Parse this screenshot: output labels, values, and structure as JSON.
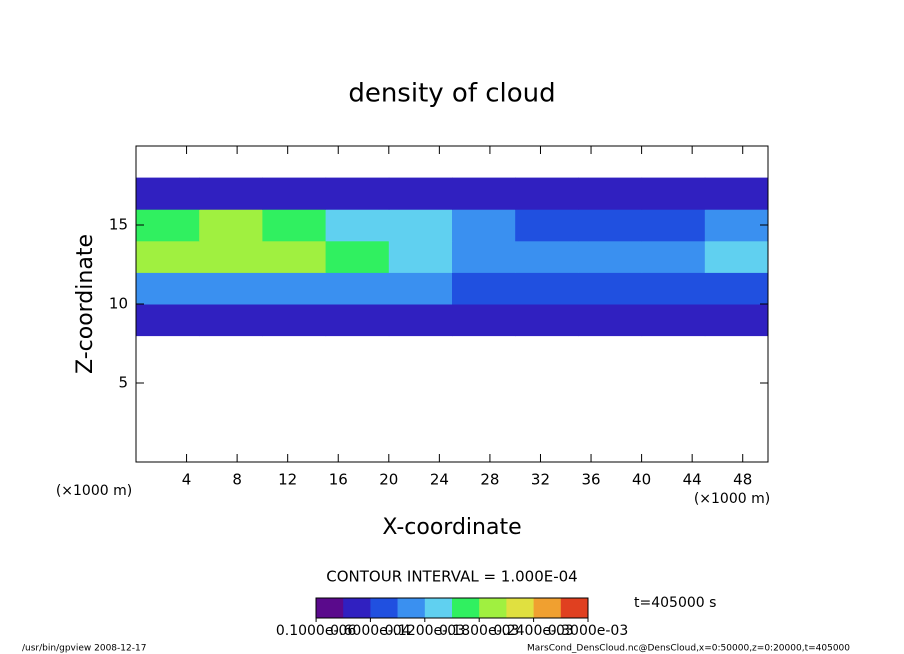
{
  "chart_data": {
    "type": "heatmap",
    "title": "density of cloud",
    "xlabel": "X-coordinate",
    "ylabel": "Z-coordinate",
    "x_unit": "(×1000 m)",
    "xlim": [
      0,
      50
    ],
    "ylim": [
      0,
      20
    ],
    "xticks": [
      4,
      8,
      12,
      16,
      20,
      24,
      28,
      32,
      36,
      40,
      44,
      48
    ],
    "yticks": [
      5,
      10,
      15
    ],
    "x": [
      2.5,
      7.5,
      12.5,
      17.5,
      22.5,
      27.5,
      32.5,
      37.5,
      42.5,
      47.5
    ],
    "y": [
      9,
      11,
      13,
      15,
      17
    ],
    "values": [
      [
        4e-05,
        4e-05,
        4e-05,
        4e-05,
        4e-05,
        4e-05,
        3e-05,
        3e-05,
        3e-05,
        3e-05
      ],
      [
        9e-05,
        0.0001,
        0.0001,
        0.0001,
        9e-05,
        8e-05,
        6e-05,
        6e-05,
        6e-05,
        7e-05
      ],
      [
        0.00019,
        0.0002,
        0.00018,
        0.00016,
        0.00014,
        0.00011,
        9e-05,
        9e-05,
        9e-05,
        0.00012
      ],
      [
        0.00016,
        0.00018,
        0.00016,
        0.00014,
        0.00012,
        0.0001,
        8e-05,
        8e-05,
        8e-05,
        9e-05
      ],
      [
        4e-05,
        5e-05,
        5e-05,
        5e-05,
        5e-05,
        5e-05,
        4e-05,
        4e-05,
        4e-05,
        4e-05
      ]
    ],
    "clim": [
      0,
      0.0003
    ],
    "colormap": [
      "#5a0a8c",
      "#3020c0",
      "#2050e0",
      "#3a90f0",
      "#60d0f0",
      "#30f060",
      "#a0f040",
      "#e0e040",
      "#f0a030",
      "#e04020"
    ],
    "cticks": [
      {
        "value": 1e-07,
        "label": "0.1000e-06"
      },
      {
        "value": 6e-05,
        "label": "0.6000e-04"
      },
      {
        "value": 0.00012,
        "label": "0.1200e-03"
      },
      {
        "value": 0.00018,
        "label": "0.1800e-03"
      },
      {
        "value": 0.00024,
        "label": "0.2400e-03"
      },
      {
        "value": 0.0003,
        "label": "0.3000e-03"
      }
    ],
    "contour_interval": "CONTOUR INTERVAL = 1.000E-04",
    "time_label": "t=405000 s",
    "footer_left": "/usr/bin/gpview  2008-12-17",
    "footer_right": "MarsCond_DensCloud.nc@DensCloud,x=0:50000,z=0:20000,t=405000"
  }
}
